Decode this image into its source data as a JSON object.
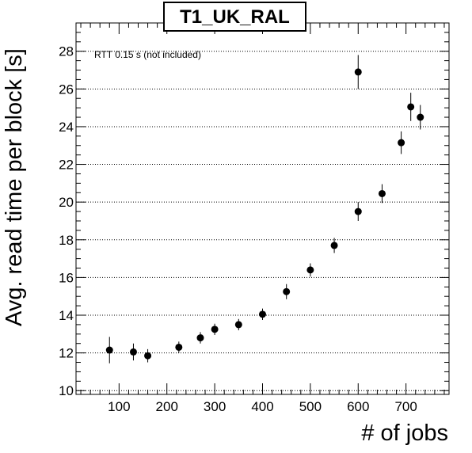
{
  "chart_data": {
    "type": "scatter",
    "title": "T1_UK_RAL",
    "xlabel": "# of jobs",
    "ylabel": "Avg. read time per block [s]",
    "annotation": "RTT 0.15 s (not included)",
    "xlim": [
      10,
      790
    ],
    "ylim": [
      9.8,
      29.5
    ],
    "xticks": [
      100,
      200,
      300,
      400,
      500,
      600,
      700
    ],
    "yticks": [
      10,
      12,
      14,
      16,
      18,
      20,
      22,
      24,
      26,
      28
    ],
    "grid": "horizontal dotted",
    "points": [
      {
        "x": 80,
        "y": 12.15,
        "err": 0.7
      },
      {
        "x": 130,
        "y": 12.05,
        "err": 0.45
      },
      {
        "x": 160,
        "y": 11.85,
        "err": 0.35
      },
      {
        "x": 225,
        "y": 12.3,
        "err": 0.3
      },
      {
        "x": 270,
        "y": 12.8,
        "err": 0.3
      },
      {
        "x": 300,
        "y": 13.25,
        "err": 0.3
      },
      {
        "x": 350,
        "y": 13.5,
        "err": 0.3
      },
      {
        "x": 400,
        "y": 14.05,
        "err": 0.3
      },
      {
        "x": 450,
        "y": 15.25,
        "err": 0.4
      },
      {
        "x": 500,
        "y": 16.4,
        "err": 0.35
      },
      {
        "x": 550,
        "y": 17.7,
        "err": 0.4
      },
      {
        "x": 600,
        "y": 19.5,
        "err": 0.5
      },
      {
        "x": 600,
        "y": 26.9,
        "err": 0.9
      },
      {
        "x": 650,
        "y": 20.45,
        "err": 0.5
      },
      {
        "x": 690,
        "y": 23.15,
        "err": 0.6
      },
      {
        "x": 710,
        "y": 25.05,
        "err": 0.75
      },
      {
        "x": 730,
        "y": 24.5,
        "err": 0.65
      }
    ]
  }
}
